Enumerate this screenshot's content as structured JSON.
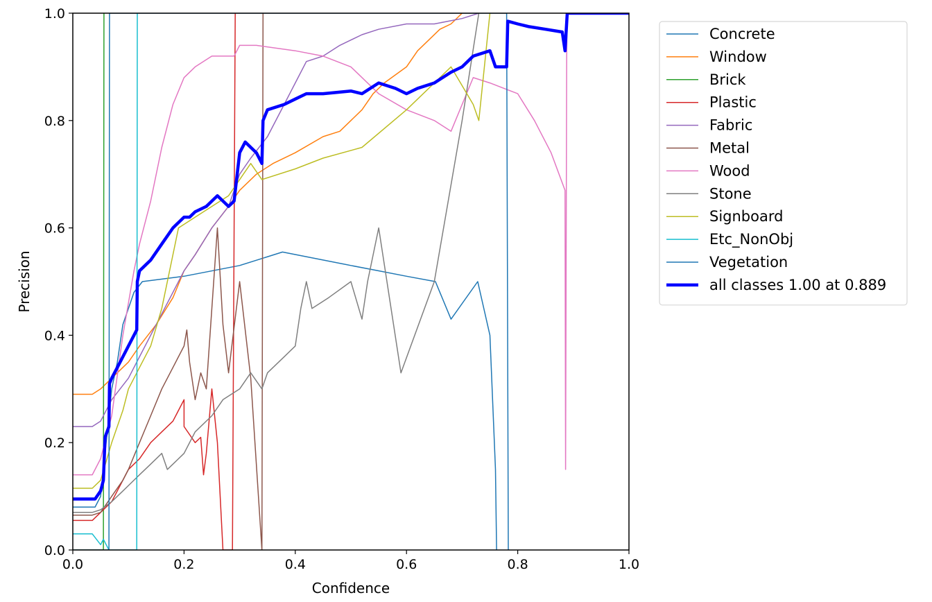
{
  "chart_data": {
    "type": "line",
    "xlabel": "Confidence",
    "ylabel": "Precision",
    "xlim": [
      0.0,
      1.0
    ],
    "ylim": [
      0.0,
      1.0
    ],
    "x_ticks": [
      "0.0",
      "0.2",
      "0.4",
      "0.6",
      "0.8",
      "1.0"
    ],
    "y_ticks": [
      "0.0",
      "0.2",
      "0.4",
      "0.6",
      "0.8",
      "1.0"
    ],
    "grid": false,
    "legend_position": "outside-right-top",
    "series": [
      {
        "name": "Concrete",
        "color": "#1f77b4",
        "width": 1.5,
        "points": [
          [
            0,
            0.08
          ],
          [
            0.04,
            0.08
          ],
          [
            0.05,
            0.1
          ],
          [
            0.06,
            0.2
          ],
          [
            0.07,
            0.3
          ],
          [
            0.08,
            0.35
          ],
          [
            0.09,
            0.42
          ],
          [
            0.1,
            0.45
          ],
          [
            0.11,
            0.48
          ],
          [
            0.125,
            0.5
          ],
          [
            0.2,
            0.51
          ],
          [
            0.3,
            0.53
          ],
          [
            0.377,
            0.555
          ],
          [
            0.5,
            0.53
          ],
          [
            0.55,
            0.52
          ],
          [
            0.6,
            0.51
          ],
          [
            0.652,
            0.5
          ],
          [
            0.68,
            0.43
          ],
          [
            0.728,
            0.5
          ],
          [
            0.75,
            0.4
          ],
          [
            0.76,
            0.15
          ],
          [
            0.762,
            0.0
          ]
        ]
      },
      {
        "name": "Window",
        "color": "#ff7f0e",
        "width": 1.5,
        "points": [
          [
            0,
            0.29
          ],
          [
            0.035,
            0.29
          ],
          [
            0.05,
            0.3
          ],
          [
            0.07,
            0.32
          ],
          [
            0.1,
            0.35
          ],
          [
            0.12,
            0.38
          ],
          [
            0.15,
            0.42
          ],
          [
            0.18,
            0.47
          ],
          [
            0.2,
            0.52
          ],
          [
            0.22,
            0.55
          ],
          [
            0.25,
            0.6
          ],
          [
            0.28,
            0.64
          ],
          [
            0.3,
            0.67
          ],
          [
            0.33,
            0.7
          ],
          [
            0.36,
            0.72
          ],
          [
            0.4,
            0.74
          ],
          [
            0.45,
            0.77
          ],
          [
            0.48,
            0.78
          ],
          [
            0.5,
            0.8
          ],
          [
            0.52,
            0.82
          ],
          [
            0.54,
            0.85
          ],
          [
            0.56,
            0.87
          ],
          [
            0.6,
            0.9
          ],
          [
            0.62,
            0.93
          ],
          [
            0.64,
            0.95
          ],
          [
            0.66,
            0.97
          ],
          [
            0.68,
            0.98
          ],
          [
            0.7,
            1.0
          ]
        ]
      },
      {
        "name": "Brick",
        "color": "#2ca02c",
        "width": 1.5,
        "points": [
          [
            0,
            0.0
          ],
          [
            0.055,
            0.0
          ],
          [
            0.056,
            1.0
          ]
        ]
      },
      {
        "name": "Plastic",
        "color": "#d62728",
        "width": 1.5,
        "points": [
          [
            0,
            0.055
          ],
          [
            0.035,
            0.055
          ],
          [
            0.05,
            0.07
          ],
          [
            0.07,
            0.09
          ],
          [
            0.09,
            0.13
          ],
          [
            0.1,
            0.15
          ],
          [
            0.12,
            0.17
          ],
          [
            0.14,
            0.2
          ],
          [
            0.16,
            0.22
          ],
          [
            0.18,
            0.24
          ],
          [
            0.2,
            0.28
          ],
          [
            0.2,
            0.23
          ],
          [
            0.22,
            0.2
          ],
          [
            0.23,
            0.21
          ],
          [
            0.235,
            0.14
          ],
          [
            0.24,
            0.18
          ],
          [
            0.25,
            0.3
          ],
          [
            0.26,
            0.2
          ],
          [
            0.265,
            0.1
          ],
          [
            0.27,
            0.0
          ],
          [
            0.287,
            0.0
          ],
          [
            0.292,
            1.0
          ]
        ]
      },
      {
        "name": "Fabric",
        "color": "#9467bd",
        "width": 1.5,
        "points": [
          [
            0,
            0.23
          ],
          [
            0.035,
            0.23
          ],
          [
            0.05,
            0.24
          ],
          [
            0.07,
            0.28
          ],
          [
            0.1,
            0.32
          ],
          [
            0.12,
            0.36
          ],
          [
            0.15,
            0.42
          ],
          [
            0.18,
            0.48
          ],
          [
            0.2,
            0.52
          ],
          [
            0.22,
            0.55
          ],
          [
            0.25,
            0.6
          ],
          [
            0.28,
            0.64
          ],
          [
            0.3,
            0.7
          ],
          [
            0.32,
            0.73
          ],
          [
            0.35,
            0.77
          ],
          [
            0.38,
            0.83
          ],
          [
            0.4,
            0.87
          ],
          [
            0.42,
            0.91
          ],
          [
            0.45,
            0.92
          ],
          [
            0.48,
            0.94
          ],
          [
            0.5,
            0.95
          ],
          [
            0.52,
            0.96
          ],
          [
            0.55,
            0.97
          ],
          [
            0.6,
            0.98
          ],
          [
            0.65,
            0.98
          ],
          [
            0.7,
            0.99
          ],
          [
            0.73,
            1.0
          ]
        ]
      },
      {
        "name": "Metal",
        "color": "#8c564b",
        "width": 1.5,
        "points": [
          [
            0,
            0.065
          ],
          [
            0.035,
            0.065
          ],
          [
            0.05,
            0.07
          ],
          [
            0.07,
            0.1
          ],
          [
            0.09,
            0.13
          ],
          [
            0.1,
            0.15
          ],
          [
            0.12,
            0.2
          ],
          [
            0.14,
            0.25
          ],
          [
            0.16,
            0.3
          ],
          [
            0.18,
            0.34
          ],
          [
            0.2,
            0.38
          ],
          [
            0.205,
            0.41
          ],
          [
            0.21,
            0.35
          ],
          [
            0.22,
            0.28
          ],
          [
            0.23,
            0.33
          ],
          [
            0.24,
            0.3
          ],
          [
            0.25,
            0.45
          ],
          [
            0.26,
            0.6
          ],
          [
            0.27,
            0.42
          ],
          [
            0.28,
            0.33
          ],
          [
            0.3,
            0.5
          ],
          [
            0.32,
            0.32
          ],
          [
            0.34,
            0.0
          ],
          [
            0.342,
            1.0
          ]
        ]
      },
      {
        "name": "Wood",
        "color": "#e377c2",
        "width": 1.5,
        "points": [
          [
            0,
            0.14
          ],
          [
            0.035,
            0.14
          ],
          [
            0.05,
            0.17
          ],
          [
            0.07,
            0.25
          ],
          [
            0.09,
            0.4
          ],
          [
            0.11,
            0.52
          ],
          [
            0.12,
            0.57
          ],
          [
            0.14,
            0.65
          ],
          [
            0.16,
            0.75
          ],
          [
            0.18,
            0.83
          ],
          [
            0.2,
            0.88
          ],
          [
            0.22,
            0.9
          ],
          [
            0.25,
            0.92
          ],
          [
            0.29,
            0.92
          ],
          [
            0.3,
            0.94
          ],
          [
            0.33,
            0.94
          ],
          [
            0.4,
            0.93
          ],
          [
            0.45,
            0.92
          ],
          [
            0.5,
            0.9
          ],
          [
            0.55,
            0.85
          ],
          [
            0.6,
            0.82
          ],
          [
            0.65,
            0.8
          ],
          [
            0.68,
            0.78
          ],
          [
            0.72,
            0.88
          ],
          [
            0.75,
            0.87
          ],
          [
            0.8,
            0.85
          ],
          [
            0.83,
            0.8
          ],
          [
            0.86,
            0.74
          ],
          [
            0.885,
            0.67
          ],
          [
            0.886,
            0.15
          ],
          [
            0.888,
            0.92
          ],
          [
            0.889,
            1.0
          ]
        ]
      },
      {
        "name": "Stone",
        "color": "#7f7f7f",
        "width": 1.5,
        "points": [
          [
            0,
            0.07
          ],
          [
            0.035,
            0.07
          ],
          [
            0.05,
            0.075
          ],
          [
            0.07,
            0.09
          ],
          [
            0.09,
            0.11
          ],
          [
            0.1,
            0.12
          ],
          [
            0.12,
            0.14
          ],
          [
            0.14,
            0.16
          ],
          [
            0.16,
            0.18
          ],
          [
            0.17,
            0.15
          ],
          [
            0.18,
            0.16
          ],
          [
            0.2,
            0.18
          ],
          [
            0.22,
            0.22
          ],
          [
            0.25,
            0.25
          ],
          [
            0.27,
            0.28
          ],
          [
            0.3,
            0.3
          ],
          [
            0.32,
            0.33
          ],
          [
            0.34,
            0.3
          ],
          [
            0.35,
            0.33
          ],
          [
            0.38,
            0.36
          ],
          [
            0.4,
            0.38
          ],
          [
            0.41,
            0.45
          ],
          [
            0.42,
            0.5
          ],
          [
            0.43,
            0.45
          ],
          [
            0.46,
            0.47
          ],
          [
            0.5,
            0.5
          ],
          [
            0.52,
            0.43
          ],
          [
            0.53,
            0.5
          ],
          [
            0.55,
            0.6
          ],
          [
            0.59,
            0.33
          ],
          [
            0.65,
            0.5
          ],
          [
            0.7,
            0.8
          ],
          [
            0.73,
            1.0
          ]
        ]
      },
      {
        "name": "Signboard",
        "color": "#bcbd22",
        "width": 1.5,
        "points": [
          [
            0,
            0.115
          ],
          [
            0.035,
            0.115
          ],
          [
            0.05,
            0.13
          ],
          [
            0.07,
            0.2
          ],
          [
            0.09,
            0.26
          ],
          [
            0.1,
            0.3
          ],
          [
            0.12,
            0.34
          ],
          [
            0.14,
            0.38
          ],
          [
            0.16,
            0.45
          ],
          [
            0.19,
            0.6
          ],
          [
            0.22,
            0.62
          ],
          [
            0.25,
            0.64
          ],
          [
            0.28,
            0.66
          ],
          [
            0.3,
            0.69
          ],
          [
            0.32,
            0.72
          ],
          [
            0.34,
            0.69
          ],
          [
            0.4,
            0.71
          ],
          [
            0.45,
            0.73
          ],
          [
            0.52,
            0.75
          ],
          [
            0.6,
            0.82
          ],
          [
            0.68,
            0.9
          ],
          [
            0.72,
            0.83
          ],
          [
            0.73,
            0.8
          ],
          [
            0.75,
            1.0
          ]
        ]
      },
      {
        "name": "Etc_NonObj",
        "color": "#17becf",
        "width": 1.5,
        "points": [
          [
            0,
            0.03
          ],
          [
            0.035,
            0.03
          ],
          [
            0.05,
            0.01
          ],
          [
            0.055,
            0.02
          ],
          [
            0.06,
            0.01
          ],
          [
            0.065,
            0.0
          ],
          [
            0.115,
            0.0
          ],
          [
            0.116,
            1.0
          ]
        ]
      },
      {
        "name": "Vegetation",
        "color": "#1f77b4",
        "width": 1.5,
        "points": [
          [
            0,
            0.0
          ],
          [
            0.065,
            0.0
          ],
          [
            0.066,
            1.0
          ],
          [
            0.78,
            1.0
          ],
          [
            0.783,
            0.0
          ],
          [
            0.785,
            0.0
          ]
        ]
      },
      {
        "name": "all classes 1.00 at 0.889",
        "color": "#0000ff",
        "width": 4.5,
        "points": [
          [
            0,
            0.095
          ],
          [
            0.04,
            0.095
          ],
          [
            0.05,
            0.11
          ],
          [
            0.055,
            0.13
          ],
          [
            0.058,
            0.21
          ],
          [
            0.065,
            0.23
          ],
          [
            0.066,
            0.31
          ],
          [
            0.07,
            0.32
          ],
          [
            0.08,
            0.34
          ],
          [
            0.09,
            0.36
          ],
          [
            0.1,
            0.38
          ],
          [
            0.115,
            0.41
          ],
          [
            0.116,
            0.5
          ],
          [
            0.12,
            0.52
          ],
          [
            0.14,
            0.54
          ],
          [
            0.16,
            0.57
          ],
          [
            0.18,
            0.6
          ],
          [
            0.2,
            0.62
          ],
          [
            0.21,
            0.62
          ],
          [
            0.22,
            0.63
          ],
          [
            0.24,
            0.64
          ],
          [
            0.26,
            0.66
          ],
          [
            0.27,
            0.65
          ],
          [
            0.28,
            0.64
          ],
          [
            0.29,
            0.65
          ],
          [
            0.3,
            0.74
          ],
          [
            0.31,
            0.76
          ],
          [
            0.32,
            0.75
          ],
          [
            0.33,
            0.74
          ],
          [
            0.34,
            0.72
          ],
          [
            0.342,
            0.8
          ],
          [
            0.35,
            0.82
          ],
          [
            0.38,
            0.83
          ],
          [
            0.4,
            0.84
          ],
          [
            0.42,
            0.85
          ],
          [
            0.45,
            0.85
          ],
          [
            0.5,
            0.855
          ],
          [
            0.52,
            0.85
          ],
          [
            0.55,
            0.87
          ],
          [
            0.58,
            0.86
          ],
          [
            0.6,
            0.85
          ],
          [
            0.62,
            0.86
          ],
          [
            0.65,
            0.87
          ],
          [
            0.68,
            0.89
          ],
          [
            0.7,
            0.9
          ],
          [
            0.72,
            0.92
          ],
          [
            0.75,
            0.93
          ],
          [
            0.76,
            0.9
          ],
          [
            0.78,
            0.9
          ],
          [
            0.782,
            0.985
          ],
          [
            0.8,
            0.98
          ],
          [
            0.82,
            0.975
          ],
          [
            0.85,
            0.97
          ],
          [
            0.88,
            0.965
          ],
          [
            0.885,
            0.93
          ],
          [
            0.889,
            1.0
          ],
          [
            1.0,
            1.0
          ]
        ]
      }
    ]
  }
}
